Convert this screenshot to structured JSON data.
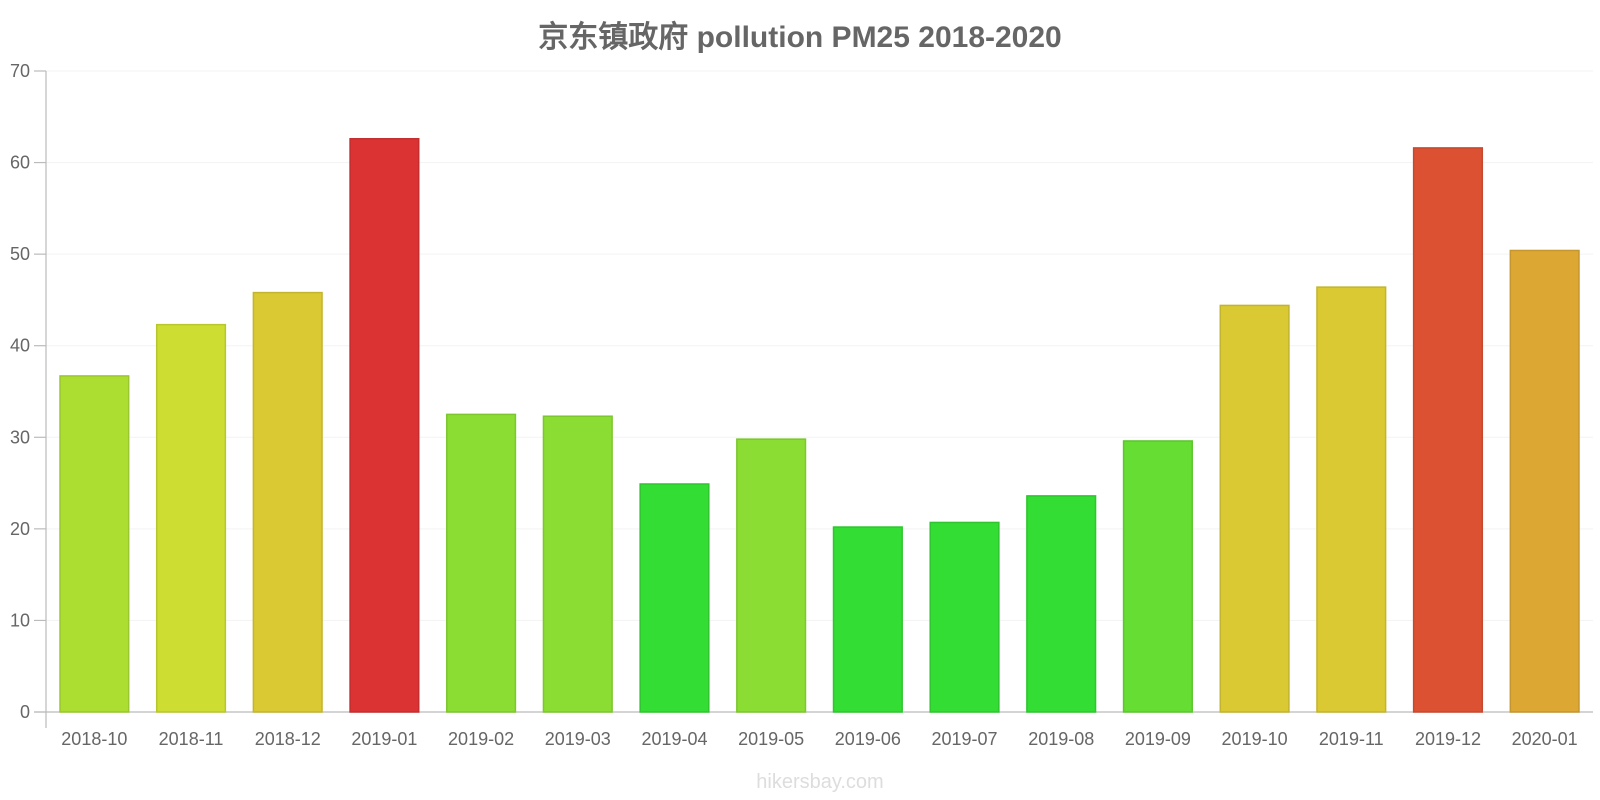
{
  "chart_data": {
    "type": "bar",
    "title": "京东镇政府 pollution PM25 2018-2020",
    "xlabel": "",
    "ylabel": "",
    "ylim": [
      0,
      70
    ],
    "yticks": [
      0,
      10,
      20,
      30,
      40,
      50,
      60,
      70
    ],
    "grid": true,
    "legend": "none",
    "categories": [
      "2018-10",
      "2018-11",
      "2018-12",
      "2019-01",
      "2019-02",
      "2019-03",
      "2019-04",
      "2019-05",
      "2019-06",
      "2019-07",
      "2019-08",
      "2019-09",
      "2019-10",
      "2019-11",
      "2019-12",
      "2020-01"
    ],
    "values": [
      36.7,
      42.3,
      45.8,
      62.6,
      32.5,
      32.3,
      24.9,
      29.8,
      20.2,
      20.7,
      23.6,
      29.6,
      44.4,
      46.4,
      61.6,
      50.4
    ],
    "bar_colors": [
      "#acde32",
      "#cddd32",
      "#dac933",
      "#db3333",
      "#8bdd33",
      "#8bdd33",
      "#33dd33",
      "#8bdd33",
      "#33dd33",
      "#33dd33",
      "#33dd33",
      "#66dd33",
      "#dac933",
      "#dac933",
      "#dd5133",
      "#dca833"
    ],
    "bar_border_colors": [
      "#9ac72d",
      "#b8c62d",
      "#c3b42e",
      "#c42e2e",
      "#7cc62e",
      "#7cc62e",
      "#2ec62e",
      "#7cc62e",
      "#2ec62e",
      "#2ec62e",
      "#2ec62e",
      "#5bc62e",
      "#c3b42e",
      "#c3b42e",
      "#c6482e",
      "#c5962e"
    ]
  },
  "watermark": "hikersbay.com"
}
